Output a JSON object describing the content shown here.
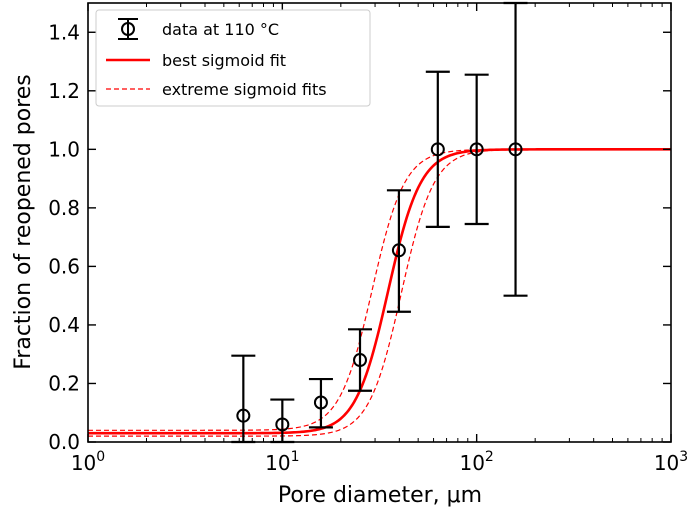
{
  "chart_data": {
    "type": "scatter",
    "xlabel": "Pore diameter, μm",
    "ylabel": "Fraction of reopened pores",
    "xscale": "log",
    "xlim": [
      1,
      1000
    ],
    "ylim": [
      0,
      1.5
    ],
    "x_ticks": [
      {
        "value": 1,
        "base": "10",
        "exp": "0"
      },
      {
        "value": 10,
        "base": "10",
        "exp": "1"
      },
      {
        "value": 100,
        "base": "10",
        "exp": "2"
      },
      {
        "value": 1000,
        "base": "10",
        "exp": "3"
      }
    ],
    "y_ticks": [
      {
        "value": 0.0,
        "label": "0.0"
      },
      {
        "value": 0.2,
        "label": "0.2"
      },
      {
        "value": 0.4,
        "label": "0.4"
      },
      {
        "value": 0.6,
        "label": "0.6"
      },
      {
        "value": 0.8,
        "label": "0.8"
      },
      {
        "value": 1.0,
        "label": "1.0"
      },
      {
        "value": 1.2,
        "label": "1.2"
      },
      {
        "value": 1.4,
        "label": "1.4"
      }
    ],
    "legend": {
      "placement": "top-left",
      "entries": [
        {
          "label": "data at 110 °C",
          "style": "errorbar-marker",
          "color": "#000000"
        },
        {
          "label": "best sigmoid fit",
          "style": "solid",
          "color": "#ff0000"
        },
        {
          "label": "extreme sigmoid fits",
          "style": "dashed",
          "color": "#ff0000"
        }
      ]
    },
    "series": [
      {
        "name": "data at 110 °C",
        "color": "#000000",
        "points": [
          {
            "x": 6.3,
            "y": 0.09,
            "ylow": 0.0,
            "yhigh": 0.295
          },
          {
            "x": 10.0,
            "y": 0.06,
            "ylow": 0.0,
            "yhigh": 0.145
          },
          {
            "x": 15.8,
            "y": 0.135,
            "ylow": 0.05,
            "yhigh": 0.215
          },
          {
            "x": 25.1,
            "y": 0.28,
            "ylow": 0.175,
            "yhigh": 0.385
          },
          {
            "x": 39.8,
            "y": 0.655,
            "ylow": 0.445,
            "yhigh": 0.86
          },
          {
            "x": 63.1,
            "y": 1.0,
            "ylow": 0.735,
            "yhigh": 1.265
          },
          {
            "x": 100,
            "y": 1.0,
            "ylow": 0.745,
            "yhigh": 1.255
          },
          {
            "x": 158.5,
            "y": 1.0,
            "ylow": 0.5,
            "yhigh": 1.5
          }
        ]
      }
    ],
    "fits": [
      {
        "name": "best sigmoid fit",
        "color": "#ff0000",
        "style": "solid",
        "lower": 0.03,
        "upper": 1.0,
        "x0": 35,
        "k": 5.2
      },
      {
        "name": "extreme sigmoid fits",
        "color": "#ff0000",
        "style": "dashed",
        "lower": 0.04,
        "upper": 1.0,
        "x0": 29,
        "k": 5.2
      },
      {
        "name": "extreme sigmoid fits",
        "color": "#ff0000",
        "style": "dashed",
        "lower": 0.02,
        "upper": 1.0,
        "x0": 41,
        "k": 5.2
      }
    ],
    "grid": false
  }
}
